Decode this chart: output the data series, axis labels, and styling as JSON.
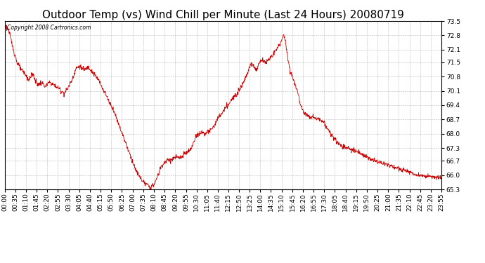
{
  "title": "Outdoor Temp (vs) Wind Chill per Minute (Last 24 Hours) 20080719",
  "copyright_text": "Copyright 2008 Cartronics.com",
  "line_color": "#cc0000",
  "background_color": "#ffffff",
  "grid_color": "#aaaaaa",
  "ylim": [
    65.3,
    73.5
  ],
  "yticks": [
    65.3,
    66.0,
    66.7,
    67.3,
    68.0,
    68.7,
    69.4,
    70.1,
    70.8,
    71.5,
    72.1,
    72.8,
    73.5
  ],
  "title_fontsize": 11,
  "tick_fontsize": 6.5,
  "num_points": 1440,
  "key_points": {
    "0": 73.3,
    "5": 73.2,
    "10": 73.1,
    "15": 72.9,
    "20": 72.6,
    "25": 72.3,
    "30": 72.0,
    "40": 71.5,
    "50": 71.2,
    "55": 71.1,
    "60": 71.05,
    "70": 70.85,
    "75": 70.7,
    "80": 70.65,
    "85": 70.8,
    "90": 70.9,
    "95": 70.85,
    "100": 70.6,
    "105": 70.5,
    "110": 70.4,
    "115": 70.45,
    "120": 70.5,
    "125": 70.45,
    "130": 70.35,
    "135": 70.3,
    "140": 70.4,
    "145": 70.5,
    "150": 70.5,
    "160": 70.4,
    "170": 70.3,
    "180": 70.2,
    "185": 70.1,
    "190": 70.05,
    "195": 70.0,
    "200": 70.05,
    "210": 70.3,
    "220": 70.6,
    "230": 71.0,
    "235": 71.2,
    "240": 71.25,
    "245": 71.3,
    "250": 71.25,
    "255": 71.2,
    "260": 71.1,
    "265": 71.15,
    "270": 71.2,
    "275": 71.25,
    "280": 71.2,
    "285": 71.1,
    "290": 71.0,
    "295": 70.9,
    "300": 70.8,
    "310": 70.6,
    "320": 70.3,
    "330": 70.0,
    "340": 69.7,
    "350": 69.4,
    "360": 69.1,
    "370": 68.7,
    "380": 68.3,
    "390": 67.9,
    "400": 67.5,
    "410": 67.1,
    "420": 66.7,
    "430": 66.3,
    "440": 66.0,
    "450": 65.8,
    "460": 65.6,
    "470": 65.5,
    "475": 65.45,
    "480": 65.4,
    "485": 65.42,
    "490": 65.5,
    "500": 65.8,
    "510": 66.2,
    "515": 66.4,
    "520": 66.5,
    "525": 66.6,
    "530": 66.65,
    "535": 66.7,
    "540": 66.75,
    "545": 66.7,
    "550": 66.75,
    "555": 66.8,
    "560": 66.85,
    "565": 66.9,
    "570": 66.85,
    "575": 66.8,
    "580": 66.85,
    "585": 66.9,
    "590": 67.0,
    "600": 67.1,
    "610": 67.2,
    "615": 67.3,
    "620": 67.5,
    "625": 67.7,
    "630": 67.9,
    "635": 68.0,
    "640": 67.95,
    "645": 68.05,
    "650": 68.1,
    "655": 68.05,
    "660": 68.0,
    "665": 68.05,
    "670": 68.1,
    "675": 68.15,
    "680": 68.2,
    "685": 68.3,
    "690": 68.4,
    "695": 68.55,
    "700": 68.7,
    "710": 68.9,
    "720": 69.1,
    "730": 69.3,
    "740": 69.5,
    "750": 69.7,
    "760": 69.9,
    "770": 70.1,
    "780": 70.35,
    "785": 70.5,
    "790": 70.65,
    "795": 70.8,
    "800": 71.0,
    "805": 71.2,
    "810": 71.35,
    "815": 71.4,
    "820": 71.35,
    "825": 71.2,
    "830": 71.1,
    "835": 71.3,
    "840": 71.5,
    "845": 71.6,
    "850": 71.55,
    "855": 71.6,
    "860": 71.5,
    "865": 71.55,
    "870": 71.6,
    "880": 71.8,
    "890": 72.0,
    "900": 72.2,
    "910": 72.5,
    "915": 72.7,
    "920": 72.8,
    "925": 72.5,
    "930": 72.0,
    "935": 71.5,
    "940": 71.1,
    "945": 70.9,
    "950": 70.7,
    "955": 70.5,
    "960": 70.3,
    "965": 70.1,
    "970": 69.7,
    "975": 69.4,
    "980": 69.2,
    "985": 69.1,
    "990": 69.0,
    "995": 68.95,
    "1000": 68.9,
    "1005": 68.85,
    "1010": 68.8,
    "1015": 68.85,
    "1020": 68.8,
    "1025": 68.75,
    "1030": 68.7,
    "1035": 68.75,
    "1040": 68.7,
    "1045": 68.65,
    "1050": 68.6,
    "1055": 68.5,
    "1060": 68.3,
    "1070": 68.1,
    "1080": 67.9,
    "1090": 67.7,
    "1100": 67.5,
    "1110": 67.4,
    "1120": 67.35,
    "1125": 67.3,
    "1130": 67.35,
    "1135": 67.3,
    "1140": 67.25,
    "1150": 67.2,
    "1160": 67.15,
    "1170": 67.1,
    "1180": 67.0,
    "1190": 66.9,
    "1200": 66.8,
    "1210": 66.75,
    "1220": 66.7,
    "1230": 66.65,
    "1240": 66.6,
    "1250": 66.55,
    "1260": 66.5,
    "1270": 66.45,
    "1280": 66.4,
    "1290": 66.35,
    "1300": 66.3,
    "1310": 66.25,
    "1320": 66.2,
    "1330": 66.15,
    "1340": 66.1,
    "1350": 66.05,
    "1360": 66.0,
    "1370": 65.98,
    "1380": 65.96,
    "1390": 65.94,
    "1400": 65.92,
    "1410": 65.9,
    "1420": 65.88,
    "1430": 65.86,
    "1439": 65.84
  },
  "xtick_labels": [
    "00:00",
    "00:35",
    "01:10",
    "01:45",
    "02:20",
    "02:55",
    "03:30",
    "04:05",
    "04:40",
    "05:15",
    "05:50",
    "06:25",
    "07:00",
    "07:35",
    "08:10",
    "08:45",
    "09:20",
    "09:55",
    "10:30",
    "11:05",
    "11:40",
    "12:15",
    "12:50",
    "13:25",
    "14:00",
    "14:35",
    "15:10",
    "15:45",
    "16:20",
    "16:55",
    "17:30",
    "18:05",
    "18:40",
    "19:15",
    "19:50",
    "20:25",
    "21:00",
    "21:35",
    "22:10",
    "22:45",
    "23:20",
    "23:55"
  ]
}
